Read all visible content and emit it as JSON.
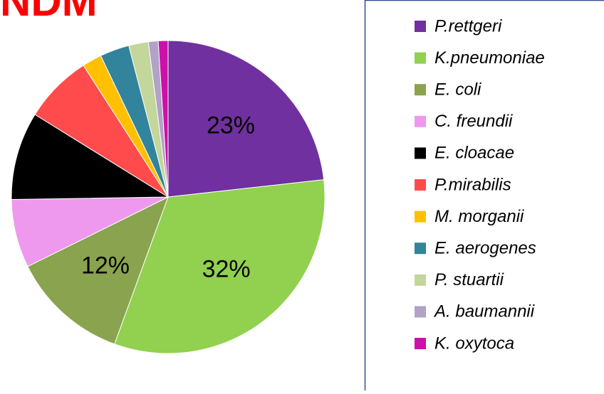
{
  "chart_data": {
    "type": "pie",
    "title": "NDM",
    "categories": [
      "P.rettgeri",
      "K.pneumoniae",
      "E. coli",
      "C. freundii",
      "E. cloacae",
      "P.mirabilis",
      "M. morganii",
      "E. aerogenes",
      "P. stuartii",
      "A. baumannii",
      "K. oxytoca"
    ],
    "values": [
      23,
      32,
      12,
      7,
      9,
      7,
      2,
      3,
      2,
      1,
      1
    ],
    "value_labels": [
      "23%",
      "32%",
      "12%",
      null,
      null,
      null,
      null,
      null,
      null,
      null,
      null
    ],
    "colors": [
      "#7030a0",
      "#92d050",
      "#8aa34e",
      "#ee99ee",
      "#000000",
      "#ff4b4b",
      "#ffc000",
      "#31849b",
      "#c3d69b",
      "#b3a2c7",
      "#cc11aa"
    ],
    "legend": "right"
  }
}
